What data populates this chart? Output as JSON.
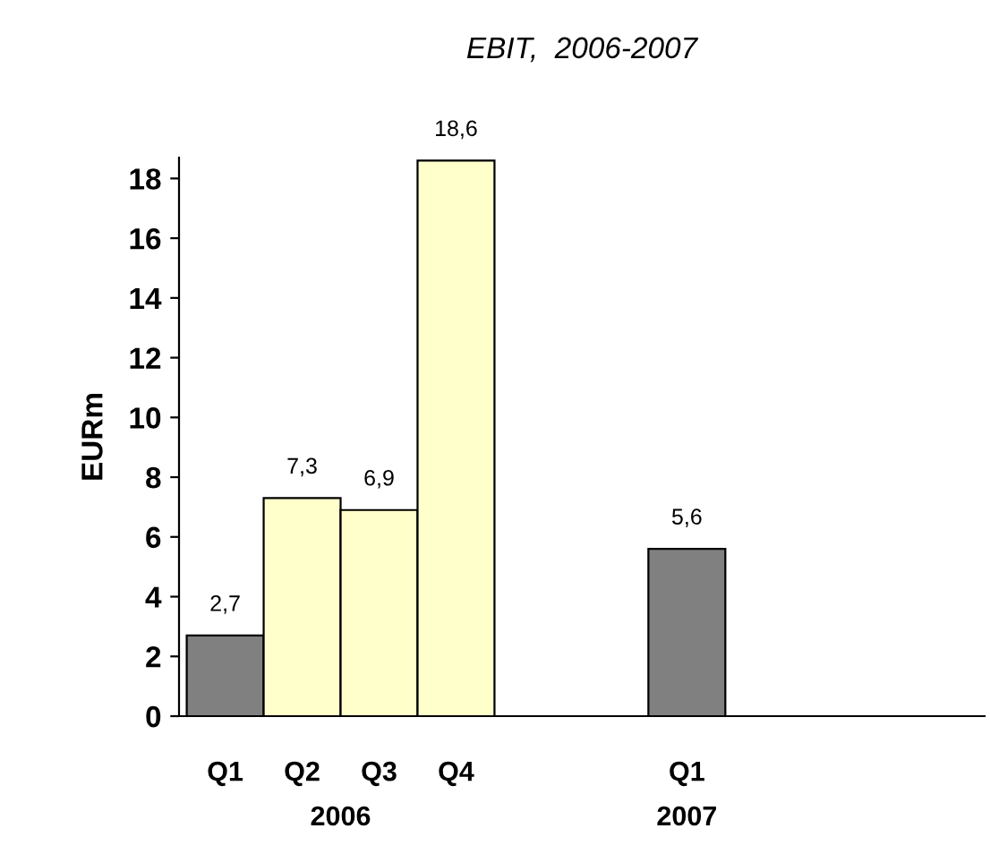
{
  "chart_data": {
    "type": "bar",
    "title": "EBIT,  2006-2007",
    "ylabel": "EURm",
    "categories": [
      "Q1",
      "Q2",
      "Q3",
      "Q4",
      null,
      null,
      "Q1",
      null,
      null,
      null
    ],
    "values": [
      2.7,
      7.3,
      6.9,
      18.6,
      null,
      null,
      5.6,
      null,
      null,
      null
    ],
    "colors": [
      "#808080",
      "#ffffcc",
      "#ffffcc",
      "#ffffcc",
      null,
      null,
      "#808080",
      null,
      null,
      null
    ],
    "value_labels": [
      "2,7",
      "7,3",
      "6,9",
      "18,6",
      null,
      null,
      "5,6",
      null,
      null,
      null
    ],
    "annotations": [
      "2006",
      "2007"
    ],
    "ylim": [
      0,
      18.7
    ],
    "yticks": [
      0,
      2,
      4,
      6,
      8,
      10,
      12,
      14,
      16,
      18
    ],
    "grid": false,
    "legend": false
  }
}
